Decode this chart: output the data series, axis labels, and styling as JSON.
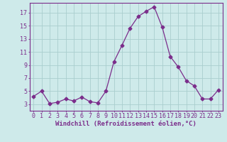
{
  "x": [
    0,
    1,
    2,
    3,
    4,
    5,
    6,
    7,
    8,
    9,
    10,
    11,
    12,
    13,
    14,
    15,
    16,
    17,
    18,
    19,
    20,
    21,
    22,
    23
  ],
  "y": [
    4.2,
    5.0,
    3.1,
    3.3,
    3.8,
    3.5,
    4.1,
    3.4,
    3.2,
    5.0,
    9.5,
    12.0,
    14.6,
    16.4,
    17.2,
    17.9,
    14.8,
    10.3,
    8.7,
    6.6,
    5.8,
    3.8,
    3.8,
    5.2
  ],
  "line_color": "#7b2d8b",
  "marker": "D",
  "markersize": 2.5,
  "bg_color": "#ceeaea",
  "grid_color": "#aacece",
  "xlabel": "Windchill (Refroidissement éolien,°C)",
  "ylabel_ticks": [
    3,
    5,
    7,
    9,
    11,
    13,
    15,
    17
  ],
  "xtick_labels": [
    "0",
    "1",
    "2",
    "3",
    "4",
    "5",
    "6",
    "7",
    "8",
    "9",
    "10",
    "11",
    "12",
    "13",
    "14",
    "15",
    "16",
    "17",
    "18",
    "19",
    "20",
    "21",
    "22",
    "23"
  ],
  "ylim": [
    2.0,
    18.5
  ],
  "xlim": [
    -0.5,
    23.5
  ],
  "tick_color": "#7b2d8b",
  "label_color": "#7b2d8b",
  "axis_color": "#7b2d8b",
  "font_size": 6,
  "xlabel_fontsize": 6.5
}
